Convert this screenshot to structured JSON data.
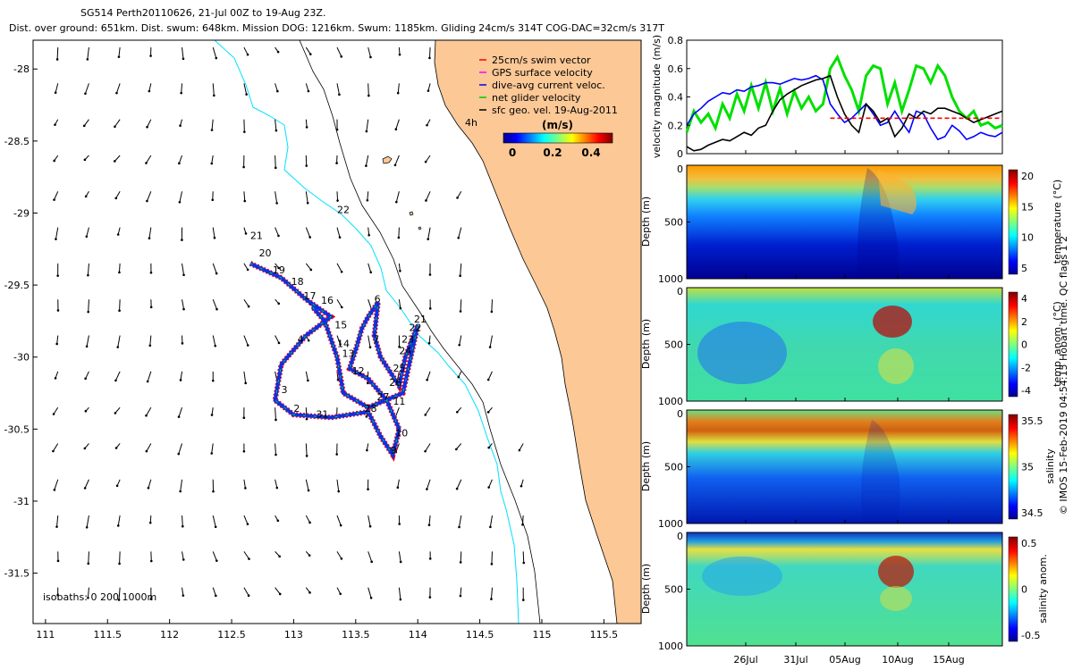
{
  "header": {
    "line1": "SG514 Perth20110626, 21-Jul 00Z to 19-Aug 23Z.",
    "line2": "Dist. over ground: 651km. Dist. swum: 648km. Mission DOG: 1216km. Swum: 1185km. Gliding 24cm/s 314T COG-DAC=32cm/s 317T"
  },
  "footer": {
    "credit": "© IMOS 15-Feb-2019 04:54:15 Hobart time. QC flags 1  2"
  },
  "colors": {
    "land": "#fbc896",
    "coast": "#000000",
    "isobath200": "#00e0ff",
    "track_red": "#ff0000",
    "track_blue": "#1030e0",
    "net": "#00ee00"
  },
  "map": {
    "isobaths_label": "isobaths: 0   200  1000m",
    "legend": {
      "items": [
        {
          "label": "25cm/s swim vector",
          "color": "#ff0000"
        },
        {
          "label": "GPS surface velocity",
          "color": "#ff00ff"
        },
        {
          "label": "dive-avg current veloc.",
          "color": "#0000ff"
        },
        {
          "label": "net glider velocity",
          "color": "#00cc00"
        },
        {
          "label": "sfc geo. vel. 19-Aug-2011",
          "color": "#000000"
        }
      ],
      "time_label": "4h",
      "colorbar_title": "(m/s)",
      "colorbar_ticks": [
        "0",
        "0.2",
        "0.4"
      ]
    },
    "x_ticks": [
      "111",
      "111.5",
      "112",
      "112.5",
      "113",
      "113.5",
      "114",
      "114.5",
      "115",
      "115.5"
    ],
    "y_ticks": [
      "-28",
      "-28.5",
      "-29",
      "-29.5",
      "-30",
      "-30.5",
      "-31",
      "-31.5"
    ]
  },
  "chart_data": [
    {
      "type": "map",
      "xlim": [
        110.9,
        115.8
      ],
      "ylim": [
        -31.85,
        -27.8
      ],
      "track_points": [
        [
          112.65,
          -29.35
        ],
        [
          112.9,
          -29.45
        ],
        [
          113.1,
          -29.6
        ],
        [
          113.3,
          -29.72
        ],
        [
          113.1,
          -29.85
        ],
        [
          112.9,
          -30.05
        ],
        [
          112.85,
          -30.3
        ],
        [
          113.0,
          -30.4
        ],
        [
          113.3,
          -30.42
        ],
        [
          113.6,
          -30.38
        ],
        [
          113.7,
          -30.55
        ],
        [
          113.8,
          -30.68
        ],
        [
          113.85,
          -30.5
        ],
        [
          113.75,
          -30.3
        ],
        [
          113.6,
          -30.15
        ],
        [
          113.45,
          -30.08
        ],
        [
          113.5,
          -29.95
        ],
        [
          113.55,
          -29.8
        ],
        [
          113.6,
          -29.72
        ],
        [
          113.68,
          -29.62
        ],
        [
          113.65,
          -29.85
        ],
        [
          113.7,
          -30.0
        ],
        [
          113.85,
          -30.2
        ],
        [
          113.9,
          -30.0
        ],
        [
          114.0,
          -29.78
        ],
        [
          113.88,
          -30.25
        ],
        [
          113.6,
          -30.35
        ],
        [
          113.4,
          -30.25
        ],
        [
          113.35,
          -30.0
        ],
        [
          113.25,
          -29.75
        ],
        [
          113.15,
          -29.65
        ]
      ],
      "day_labels": [
        {
          "label": "22",
          "x": 113.35,
          "y": -29.0
        },
        {
          "label": "21",
          "x": 112.65,
          "y": -29.18
        },
        {
          "label": "20",
          "x": 112.72,
          "y": -29.3
        },
        {
          "label": "19",
          "x": 112.83,
          "y": -29.42
        },
        {
          "label": "18",
          "x": 112.98,
          "y": -29.5
        },
        {
          "label": "17",
          "x": 113.08,
          "y": -29.6
        },
        {
          "label": "16",
          "x": 113.22,
          "y": -29.63
        },
        {
          "label": "6",
          "x": 113.65,
          "y": -29.62
        },
        {
          "label": "21",
          "x": 113.97,
          "y": -29.76
        },
        {
          "label": "22",
          "x": 113.93,
          "y": -29.82
        },
        {
          "label": "15",
          "x": 113.33,
          "y": -29.8
        },
        {
          "label": "4",
          "x": 113.03,
          "y": -29.9
        },
        {
          "label": "7",
          "x": 113.64,
          "y": -29.9
        },
        {
          "label": "23",
          "x": 113.87,
          "y": -29.9
        },
        {
          "label": "14",
          "x": 113.35,
          "y": -29.93
        },
        {
          "label": "24",
          "x": 113.85,
          "y": -29.98
        },
        {
          "label": "13",
          "x": 113.39,
          "y": -30.0
        },
        {
          "label": "12",
          "x": 113.47,
          "y": -30.12
        },
        {
          "label": "25",
          "x": 113.8,
          "y": -30.1
        },
        {
          "label": "26",
          "x": 113.77,
          "y": -30.2
        },
        {
          "label": "3",
          "x": 112.9,
          "y": -30.25
        },
        {
          "label": "27",
          "x": 113.67,
          "y": -30.3
        },
        {
          "label": "11",
          "x": 113.8,
          "y": -30.33
        },
        {
          "label": "2",
          "x": 113.0,
          "y": -30.38
        },
        {
          "label": "31",
          "x": 113.18,
          "y": -30.42
        },
        {
          "label": "28",
          "x": 113.57,
          "y": -30.38
        },
        {
          "label": "10",
          "x": 113.82,
          "y": -30.55
        },
        {
          "label": "9",
          "x": 113.78,
          "y": -30.67
        }
      ]
    },
    {
      "type": "line",
      "ylabel": "velocity magnitude (m/s)",
      "ylim": [
        0,
        0.8
      ],
      "y_ticks": [
        "0",
        "0.2",
        "0.4",
        "0.6",
        "0.8"
      ],
      "x_ticks": [
        "26Jul",
        "31Jul",
        "05Aug",
        "10Aug",
        "15Aug"
      ],
      "series": [
        {
          "color": "#00e000",
          "values": [
            0.15,
            0.3,
            0.22,
            0.28,
            0.18,
            0.35,
            0.25,
            0.42,
            0.3,
            0.48,
            0.32,
            0.5,
            0.3,
            0.46,
            0.28,
            0.44,
            0.32,
            0.4,
            0.3,
            0.35,
            0.6,
            0.68,
            0.55,
            0.45,
            0.3,
            0.55,
            0.62,
            0.6,
            0.35,
            0.5,
            0.3,
            0.45,
            0.62,
            0.6,
            0.5,
            0.62,
            0.55,
            0.4,
            0.3,
            0.25,
            0.3,
            0.2,
            0.22,
            0.18,
            0.2
          ]
        },
        {
          "color": "#0000ff",
          "values": [
            0.2,
            0.28,
            0.32,
            0.37,
            0.4,
            0.43,
            0.42,
            0.45,
            0.44,
            0.47,
            0.48,
            0.5,
            0.5,
            0.49,
            0.51,
            0.53,
            0.52,
            0.53,
            0.55,
            0.52,
            0.35,
            0.28,
            0.22,
            0.25,
            0.3,
            0.35,
            0.28,
            0.2,
            0.22,
            0.3,
            0.22,
            0.15,
            0.3,
            0.28,
            0.18,
            0.1,
            0.12,
            0.2,
            0.16,
            0.1,
            0.12,
            0.15,
            0.13,
            0.12,
            0.15
          ]
        },
        {
          "color": "#000000",
          "values": [
            0.05,
            0.02,
            0.03,
            0.06,
            0.08,
            0.1,
            0.09,
            0.12,
            0.15,
            0.13,
            0.18,
            0.2,
            0.3,
            0.38,
            0.42,
            0.45,
            0.48,
            0.5,
            0.52,
            0.53,
            0.55,
            0.4,
            0.28,
            0.2,
            0.15,
            0.35,
            0.3,
            0.22,
            0.25,
            0.12,
            0.18,
            0.28,
            0.25,
            0.3,
            0.28,
            0.32,
            0.32,
            0.3,
            0.28,
            0.25,
            0.22,
            0.24,
            0.26,
            0.28,
            0.3
          ]
        },
        {
          "color": "#ff0000",
          "values": [
            null,
            null,
            null,
            null,
            null,
            null,
            null,
            null,
            null,
            null,
            null,
            null,
            null,
            null,
            null,
            null,
            null,
            null,
            null,
            null,
            0.25,
            0.25,
            0.25,
            0.25,
            0.25,
            0.25,
            0.25,
            0.25,
            0.25,
            0.25,
            0.25,
            0.25,
            0.25,
            0.25,
            0.25,
            0.25,
            0.25,
            0.25,
            0.25,
            0.25,
            0.25,
            0.25,
            0.25,
            0.25,
            0.25
          ]
        }
      ]
    },
    {
      "type": "heatmap",
      "id": "temperature",
      "ylabel": "Depth (m)",
      "cbar_label": "temperature (°C)",
      "y_ticks": [
        "0",
        "500",
        "1000"
      ],
      "cbar_ticks": [
        "20",
        "15",
        "10",
        "5"
      ]
    },
    {
      "type": "heatmap",
      "id": "temp_anom",
      "ylabel": "Depth (m)",
      "cbar_label": "temp. anom. (°C)",
      "y_ticks": [
        "0",
        "500",
        "1000"
      ],
      "cbar_ticks": [
        "4",
        "2",
        "0",
        "-2",
        "-4"
      ]
    },
    {
      "type": "heatmap",
      "id": "salinity",
      "ylabel": "Depth (m)",
      "cbar_label": "salinity",
      "y_ticks": [
        "0",
        "500",
        "1000"
      ],
      "cbar_ticks": [
        "35.5",
        "35",
        "34.5"
      ]
    },
    {
      "type": "heatmap",
      "id": "sal_anom",
      "ylabel": "Depth (m)",
      "cbar_label": "salinity anom.",
      "y_ticks": [
        "0",
        "500",
        "1000"
      ],
      "cbar_ticks": [
        "0.5",
        "0",
        "-0.5"
      ],
      "x_ticks": [
        "26Jul",
        "31Jul",
        "05Aug",
        "10Aug",
        "15Aug"
      ]
    }
  ]
}
